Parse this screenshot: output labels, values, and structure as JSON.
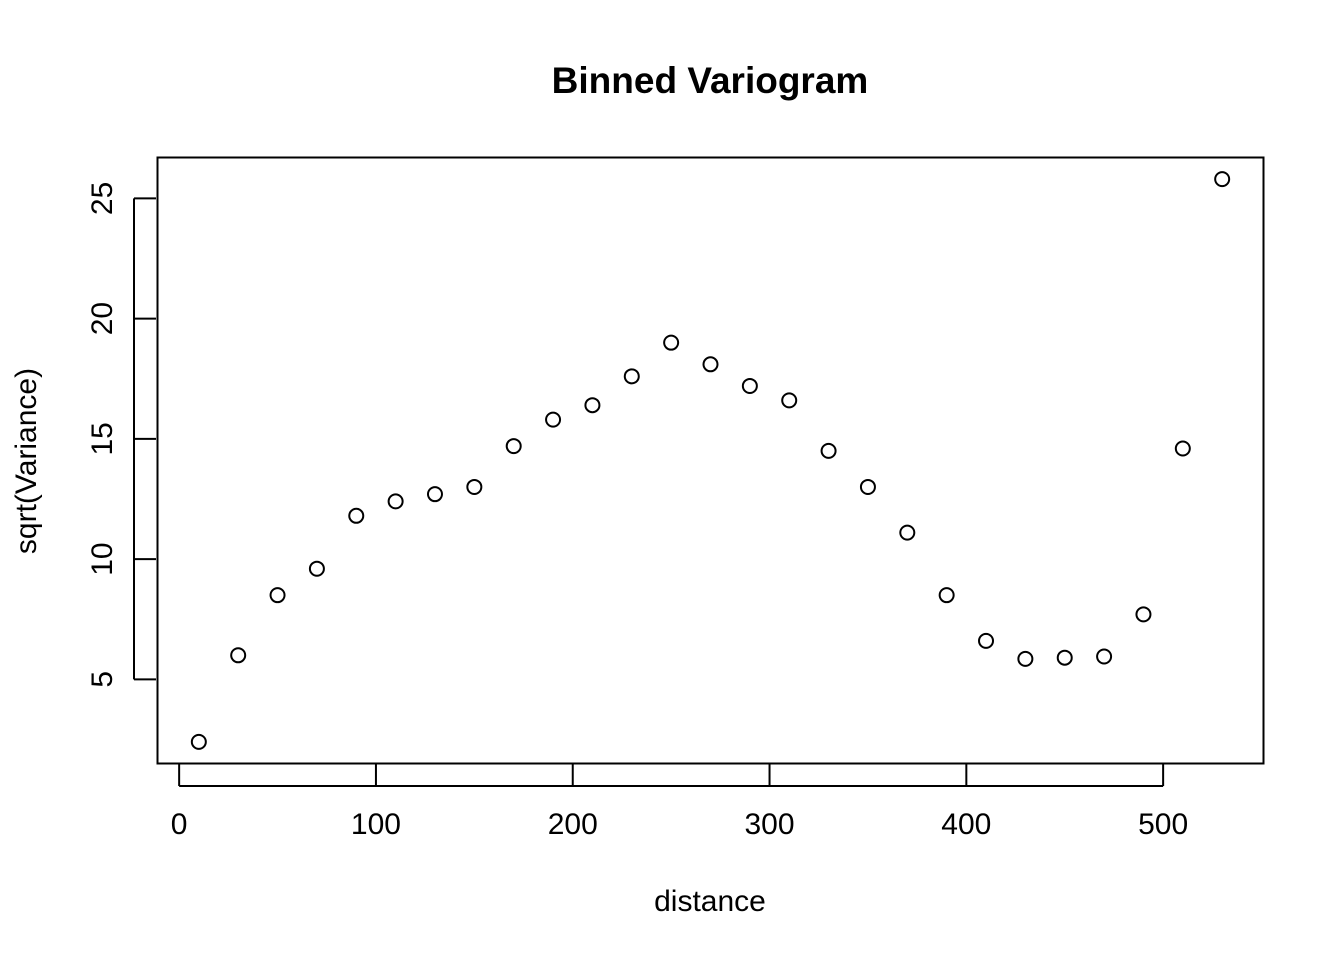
{
  "chart_data": {
    "type": "scatter",
    "title": "Binned Variogram",
    "xlabel": "distance",
    "ylabel": "sqrt(Variance)",
    "xlim": [
      -11,
      551
    ],
    "ylim": [
      1.5,
      26.7
    ],
    "xticks": [
      0,
      100,
      200,
      300,
      400,
      500
    ],
    "yticks": [
      5,
      10,
      15,
      20,
      25
    ],
    "grid": false,
    "legend": "none",
    "marker": "open-circle",
    "series": [
      {
        "x": [
          10,
          30,
          50,
          70,
          90,
          110,
          130,
          150,
          170,
          190,
          210,
          230,
          250,
          270,
          290,
          310,
          330,
          350,
          370,
          390,
          410,
          430,
          450,
          470,
          490,
          510,
          530
        ],
        "y": [
          2.4,
          6.0,
          8.5,
          9.6,
          11.8,
          12.4,
          12.7,
          13.0,
          14.7,
          15.8,
          16.4,
          17.6,
          19.0,
          18.1,
          17.2,
          16.6,
          14.5,
          13.0,
          11.1,
          8.5,
          6.6,
          5.85,
          5.9,
          5.95,
          7.7,
          14.6,
          25.8
        ]
      }
    ]
  }
}
